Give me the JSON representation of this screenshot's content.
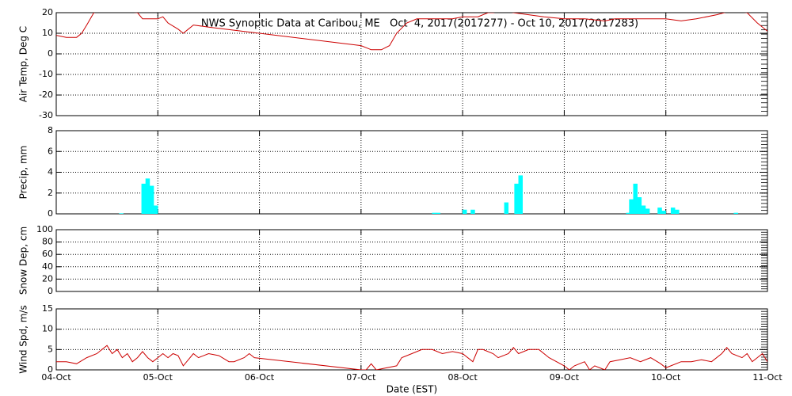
{
  "chart_data": [
    {
      "type": "line",
      "title": "NWS Synoptic Data at Caribou, ME   Oct  4, 2017(2017277) - Oct 10, 2017(2017283)",
      "ylabel": "Air Temp, Deg C",
      "ylim": [
        -30,
        20
      ],
      "yticks": [
        -30,
        -20,
        -10,
        0,
        10,
        20
      ],
      "grid": true,
      "color": "#cc0000",
      "x": [
        277.0,
        277.1,
        277.2,
        277.25,
        277.3,
        277.37,
        277.45,
        277.6,
        277.8,
        277.85,
        278.0,
        278.05,
        278.1,
        278.2,
        278.25,
        278.3,
        278.35,
        278.5,
        280.0,
        280.05,
        280.1,
        280.2,
        280.28,
        280.35,
        280.45,
        280.55,
        280.7,
        280.9,
        281.0,
        281.15,
        281.25,
        281.3,
        281.4,
        281.5,
        281.65,
        281.8,
        282.0,
        282.2,
        282.4,
        282.5,
        282.65,
        282.8,
        283.0,
        283.15,
        283.3,
        283.5,
        283.65,
        283.8,
        283.9,
        284.0
      ],
      "values": [
        9,
        8,
        8,
        10,
        14,
        20,
        21,
        21,
        20,
        17,
        17,
        18,
        15,
        12,
        10,
        12,
        14,
        13,
        4,
        3,
        2,
        2,
        4,
        10,
        15,
        17,
        17,
        17,
        18,
        18,
        20,
        20,
        21,
        20,
        19,
        18,
        17,
        17,
        16,
        17,
        17,
        17,
        17,
        16,
        17,
        19,
        21,
        20,
        15,
        11
      ]
    },
    {
      "type": "bar",
      "ylabel": "Precip, mm",
      "ylim": [
        0,
        8
      ],
      "yticks": [
        0,
        2,
        4,
        6,
        8
      ],
      "grid": true,
      "color": "#00ffff",
      "x": [
        277.64,
        277.86,
        277.9,
        277.94,
        277.98,
        280.72,
        280.76,
        281.02,
        281.1,
        281.43,
        281.53,
        281.57,
        282.63,
        282.66,
        282.7,
        282.74,
        282.78,
        282.82,
        282.94,
        282.98,
        283.07,
        283.11,
        283.69
      ],
      "values": [
        0.05,
        2.9,
        3.4,
        2.7,
        0.8,
        0.1,
        0.1,
        0.4,
        0.4,
        1.1,
        2.9,
        3.7,
        0.1,
        1.4,
        2.9,
        1.6,
        0.8,
        0.5,
        0.6,
        0.3,
        0.6,
        0.4,
        0.1
      ]
    },
    {
      "type": "line",
      "ylabel": "Snow Dep, cm",
      "ylim": [
        0,
        100
      ],
      "yticks": [
        0,
        20,
        40,
        60,
        80,
        100
      ],
      "grid": true
    },
    {
      "type": "line",
      "ylabel": "Wind Spd, m/s",
      "ylim": [
        0,
        15
      ],
      "yticks": [
        0,
        5,
        10,
        15
      ],
      "grid": true,
      "color": "#cc0000",
      "xlabel": "Date (EST)",
      "xlim": [
        277,
        284
      ],
      "xticks": [
        {
          "value": 277,
          "label": "04-Oct"
        },
        {
          "value": 278,
          "label": "05-Oct"
        },
        {
          "value": 279,
          "label": "06-Oct"
        },
        {
          "value": 280,
          "label": "07-Oct"
        },
        {
          "value": 281,
          "label": "08-Oct"
        },
        {
          "value": 282,
          "label": "09-Oct"
        },
        {
          "value": 283,
          "label": "10-Oct"
        },
        {
          "value": 284,
          "label": "11-Oct"
        }
      ],
      "x": [
        277.0,
        277.1,
        277.2,
        277.3,
        277.4,
        277.45,
        277.5,
        277.55,
        277.6,
        277.65,
        277.7,
        277.75,
        277.8,
        277.85,
        277.9,
        277.95,
        278.0,
        278.05,
        278.1,
        278.15,
        278.2,
        278.25,
        278.3,
        278.35,
        278.4,
        278.5,
        278.6,
        278.7,
        278.75,
        278.85,
        278.9,
        278.95,
        280.0,
        280.05,
        280.1,
        280.15,
        280.35,
        280.4,
        280.5,
        280.6,
        280.7,
        280.8,
        280.9,
        281.0,
        281.1,
        281.15,
        281.2,
        281.3,
        281.35,
        281.45,
        281.5,
        281.55,
        281.65,
        281.75,
        281.85,
        282.0,
        282.05,
        282.1,
        282.2,
        282.25,
        282.3,
        282.4,
        282.45,
        282.55,
        282.65,
        282.75,
        282.85,
        282.95,
        283.0,
        283.05,
        283.15,
        283.25,
        283.35,
        283.45,
        283.55,
        283.6,
        283.65,
        283.75,
        283.8,
        283.85,
        283.9,
        283.95,
        284.0
      ],
      "values": [
        2,
        2,
        1.5,
        3,
        4,
        5,
        6,
        4,
        5,
        3,
        4,
        2,
        3,
        4.5,
        3,
        2,
        3,
        4,
        3,
        4,
        3.5,
        1,
        2.5,
        4,
        3,
        4,
        3.5,
        2,
        2,
        3,
        4,
        3,
        0,
        0,
        1.5,
        0,
        1,
        3,
        4,
        5,
        5,
        4,
        4.5,
        4,
        2,
        5,
        5,
        4,
        3,
        4,
        5.5,
        4,
        5,
        5,
        3,
        1,
        0,
        1,
        2,
        0,
        1,
        0,
        2,
        2.5,
        3,
        2,
        3,
        1.5,
        0.5,
        1,
        2,
        2,
        2.5,
        2,
        4,
        5.5,
        4,
        3,
        4,
        2,
        3,
        4,
        2
      ]
    }
  ]
}
